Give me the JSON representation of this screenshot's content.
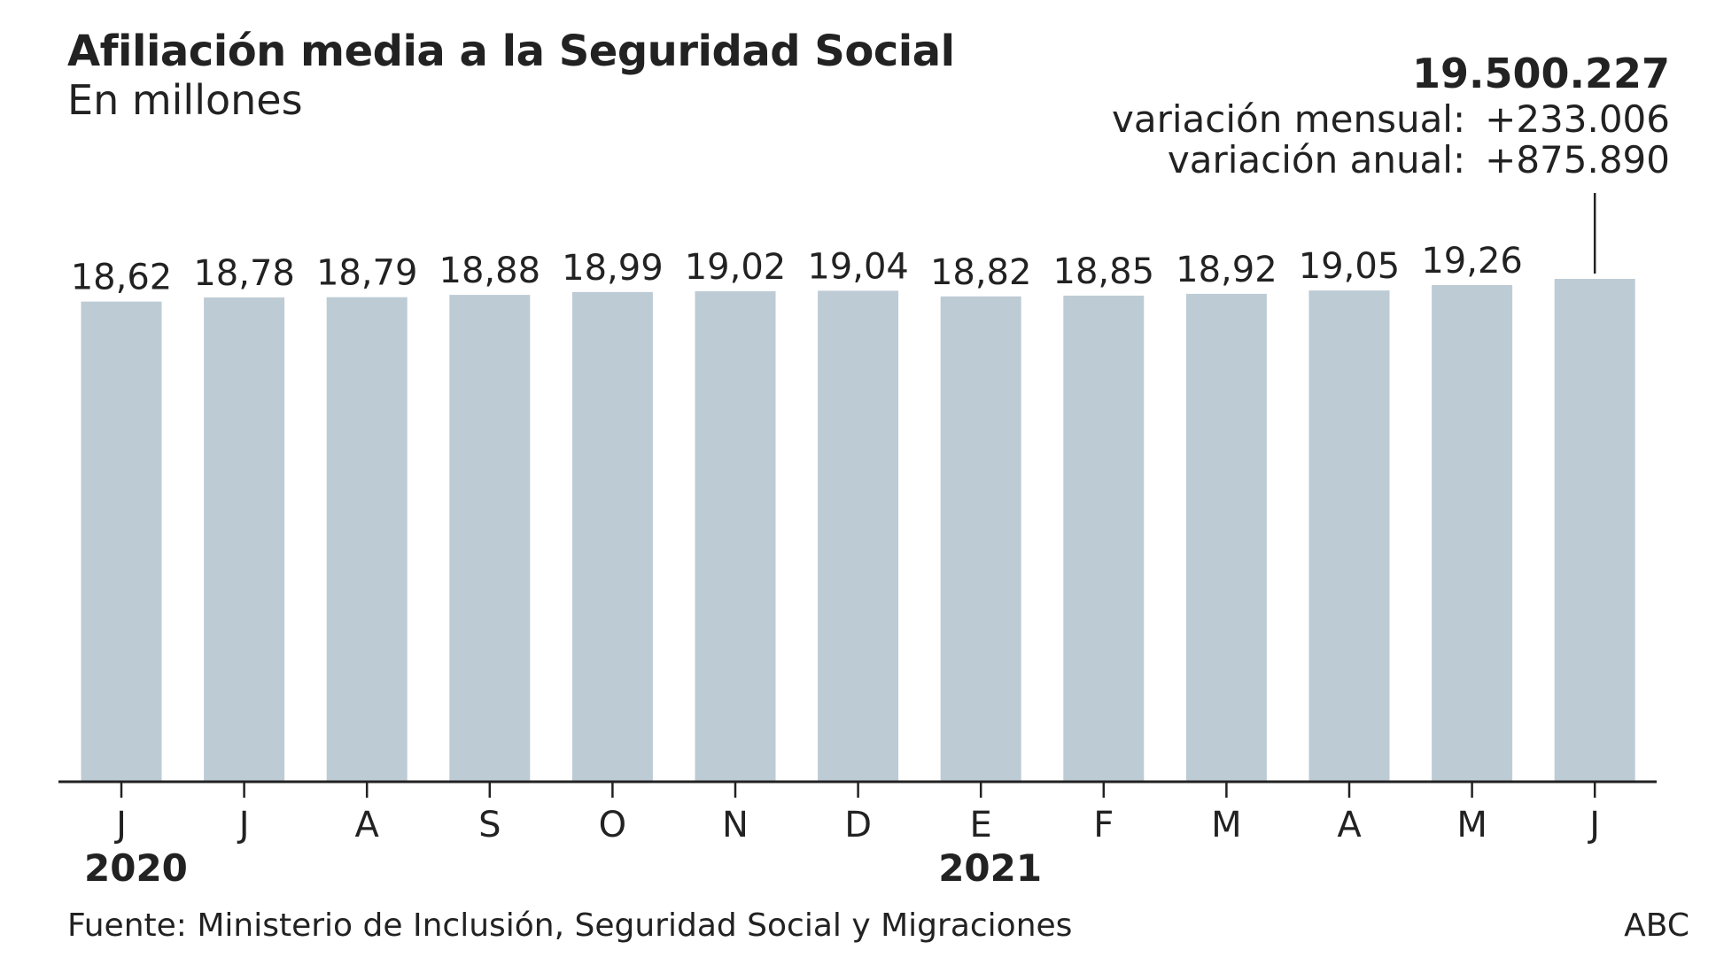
{
  "header": {
    "title": "Afiliación media a la Seguridad Social",
    "subtitle": "En millones"
  },
  "callout": {
    "total": "19.500.227",
    "monthly_label": "variación mensual:",
    "monthly_value": "+233.006",
    "annual_label": "variación anual:",
    "annual_value": "+875.890"
  },
  "footer": {
    "source": "Fuente: Ministerio de Inclusión, Seguridad Social y Migraciones",
    "credit": "ABC"
  },
  "chart_data": {
    "type": "bar",
    "title": "Afiliación media a la Seguridad Social",
    "subtitle": "En millones",
    "categories": [
      "J",
      "J",
      "A",
      "S",
      "O",
      "N",
      "D",
      "E",
      "F",
      "M",
      "A",
      "M",
      "J"
    ],
    "year_labels": [
      {
        "label": "2020",
        "index": 0
      },
      {
        "label": "2021",
        "index": 7
      }
    ],
    "values": [
      18.62,
      18.78,
      18.79,
      18.88,
      18.99,
      19.02,
      19.04,
      18.82,
      18.85,
      18.92,
      19.05,
      19.26,
      19.5
    ],
    "data_labels": [
      "18,62",
      "18,78",
      "18,79",
      "18,88",
      "18,99",
      "19,02",
      "19,04",
      "18,82",
      "18,85",
      "18,92",
      "19,05",
      "19,26",
      ""
    ],
    "ylim": [
      0,
      19.5
    ],
    "grid": false,
    "bar_color": "#bdcbd5",
    "axis_color": "#222222"
  }
}
